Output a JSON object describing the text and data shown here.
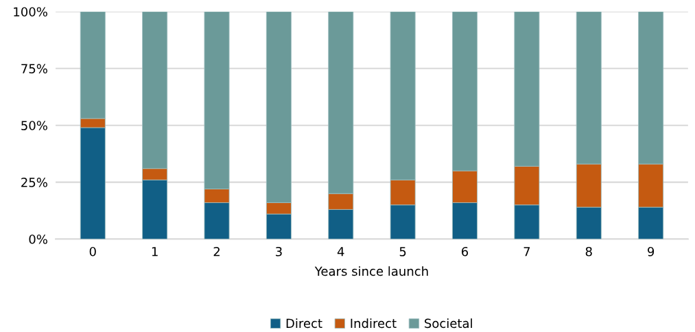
{
  "chart_data": {
    "type": "bar",
    "stacked": true,
    "xlabel": "Years since launch",
    "categories": [
      "0",
      "1",
      "2",
      "3",
      "4",
      "5",
      "6",
      "7",
      "8",
      "9"
    ],
    "series": [
      {
        "name": "Direct",
        "color": "#115f86",
        "values": [
          49,
          26,
          16,
          11,
          13,
          15,
          16,
          15,
          14,
          14
        ]
      },
      {
        "name": "Indirect",
        "color": "#c55a11",
        "values": [
          4,
          5,
          6,
          5,
          7,
          11,
          14,
          17,
          19,
          19
        ]
      },
      {
        "name": "Societal",
        "color": "#6b9a99",
        "values": [
          47,
          69,
          78,
          84,
          80,
          74,
          70,
          68,
          67,
          67
        ]
      }
    ],
    "ylim": [
      0,
      100
    ],
    "yticks": [
      {
        "value": 0,
        "label": "0%"
      },
      {
        "value": 25,
        "label": "25%"
      },
      {
        "value": 50,
        "label": "50%"
      },
      {
        "value": 75,
        "label": "75%"
      },
      {
        "value": 100,
        "label": "100%"
      }
    ],
    "grid": "y",
    "legend": "bottom"
  }
}
